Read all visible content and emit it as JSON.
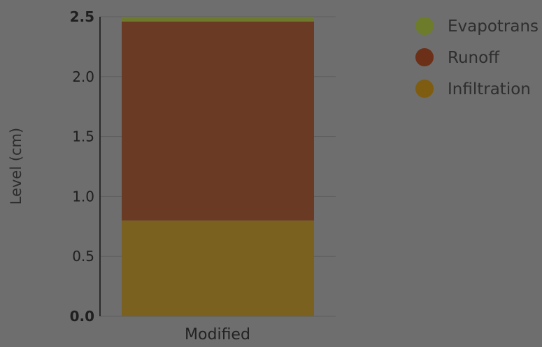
{
  "chart_data": {
    "type": "bar",
    "stacked": true,
    "categories": [
      "Modified"
    ],
    "series": [
      {
        "name": "Infiltration",
        "values": [
          0.8
        ],
        "color": "#7a611f"
      },
      {
        "name": "Runoff",
        "values": [
          1.66
        ],
        "color": "#6b3a24"
      },
      {
        "name": "Evapotrans",
        "values": [
          0.04
        ],
        "color": "#6d7a2e"
      }
    ],
    "legend_order": [
      "Evapotrans",
      "Runoff",
      "Infiltration"
    ],
    "legend_colors": {
      "Evapotrans": "#6c7c2a",
      "Runoff": "#6c2f18",
      "Infiltration": "#7e5c10"
    },
    "ylabel": "Level (cm)",
    "xlabel": "",
    "ylim": [
      0,
      2.5
    ],
    "yticks": [
      "0.0",
      "0.5",
      "1.0",
      "1.5",
      "2.0",
      "2.5"
    ],
    "grid": true,
    "legend_position": "right"
  }
}
